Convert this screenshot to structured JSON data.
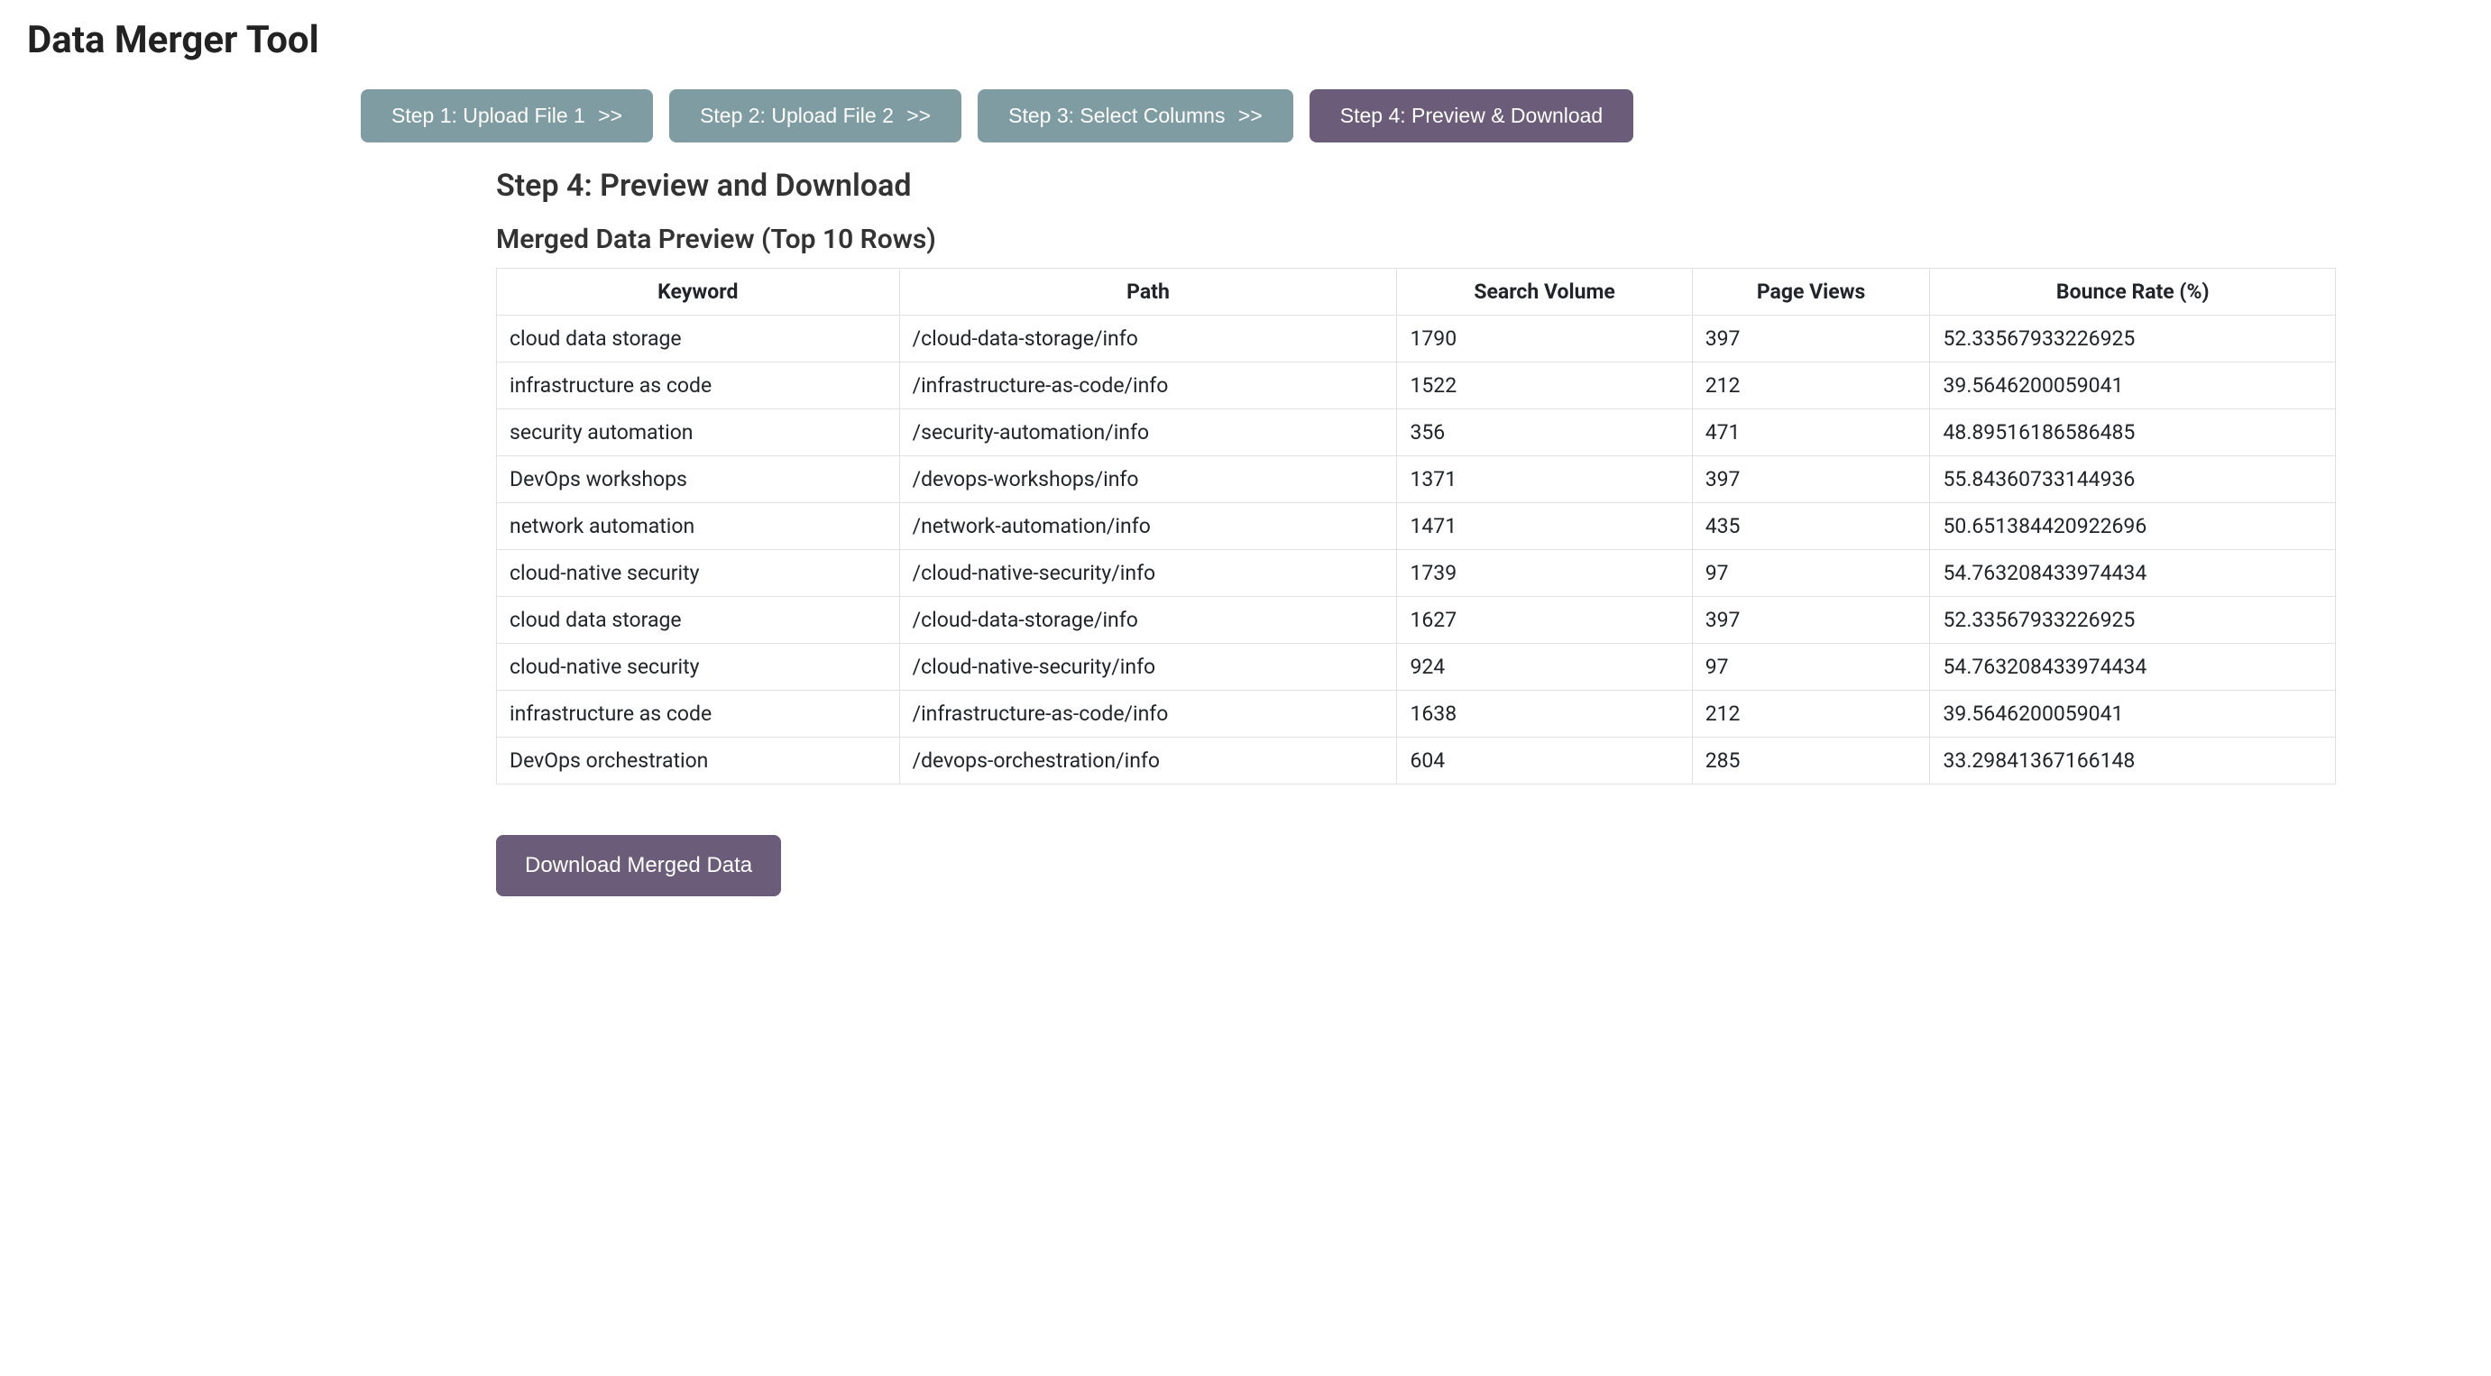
{
  "page": {
    "title": "Data Merger Tool"
  },
  "stepper": {
    "inactive_color": "#7f9ca3",
    "active_color": "#6b5d79",
    "steps": [
      {
        "label": "Step 1: Upload File 1",
        "active": false,
        "show_chevron": true
      },
      {
        "label": "Step 2: Upload File 2",
        "active": false,
        "show_chevron": true
      },
      {
        "label": "Step 3: Select Columns",
        "active": false,
        "show_chevron": true
      },
      {
        "label": "Step 4: Preview & Download",
        "active": true,
        "show_chevron": false
      }
    ]
  },
  "content": {
    "heading": "Step 4: Preview and Download",
    "subtitle": "Merged Data Preview (Top 10 Rows)"
  },
  "table": {
    "border_color": "#dee2e6",
    "columns": [
      "Keyword",
      "Path",
      "Search Volume",
      "Page Views",
      "Bounce Rate (%)"
    ],
    "rows": [
      [
        "cloud data storage",
        "/cloud-data-storage/info",
        "1790",
        "397",
        "52.33567933226925"
      ],
      [
        "infrastructure as code",
        "/infrastructure-as-code/info",
        "1522",
        "212",
        "39.5646200059041"
      ],
      [
        "security automation",
        "/security-automation/info",
        "356",
        "471",
        "48.89516186586485"
      ],
      [
        "DevOps workshops",
        "/devops-workshops/info",
        "1371",
        "397",
        "55.84360733144936"
      ],
      [
        "network automation",
        "/network-automation/info",
        "1471",
        "435",
        "50.651384420922696"
      ],
      [
        "cloud-native security",
        "/cloud-native-security/info",
        "1739",
        "97",
        "54.763208433974434"
      ],
      [
        "cloud data storage",
        "/cloud-data-storage/info",
        "1627",
        "397",
        "52.33567933226925"
      ],
      [
        "cloud-native security",
        "/cloud-native-security/info",
        "924",
        "97",
        "54.763208433974434"
      ],
      [
        "infrastructure as code",
        "/infrastructure-as-code/info",
        "1638",
        "212",
        "39.5646200059041"
      ],
      [
        "DevOps orchestration",
        "/devops-orchestration/info",
        "604",
        "285",
        "33.29841367166148"
      ]
    ]
  },
  "actions": {
    "download_label": "Download Merged Data"
  },
  "colors": {
    "background": "#ffffff",
    "text": "#212529",
    "accent": "#6b5d79"
  }
}
